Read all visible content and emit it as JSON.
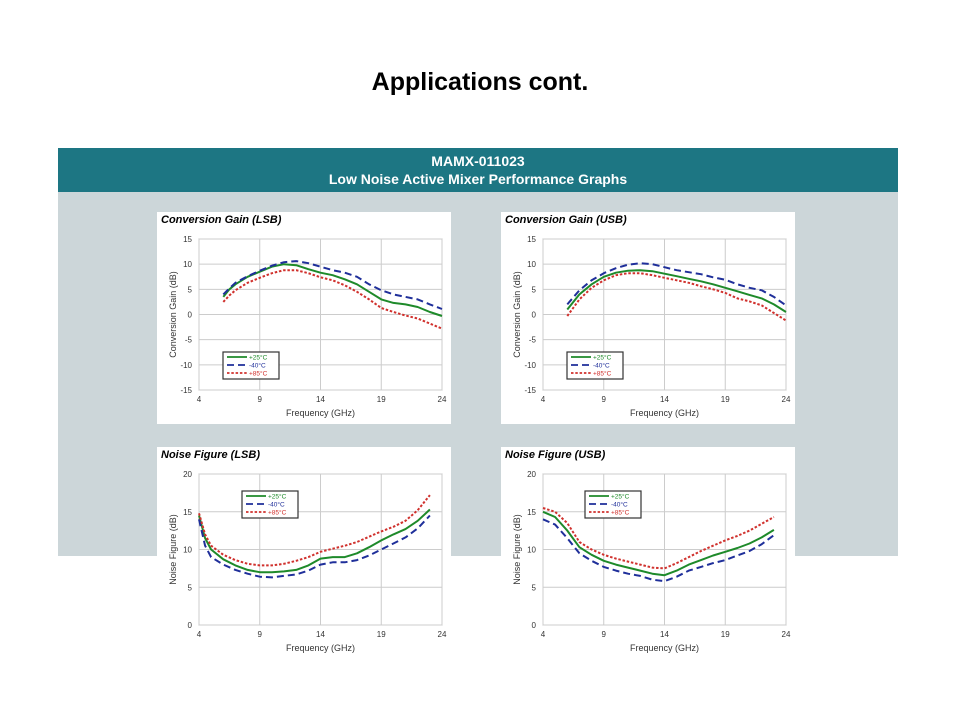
{
  "slide": {
    "title": "Applications cont.",
    "header_line1": "MAMX-011023",
    "header_line2": "Low Noise Active Mixer Performance Graphs"
  },
  "colors": {
    "band": "#1d7683",
    "panel": "#ccd6d9",
    "s25": "#1e8a2a",
    "s40": "#1f2f9a",
    "s85": "#d0312d"
  },
  "chart_data": [
    {
      "type": "line",
      "title": "Conversion Gain (LSB)",
      "xlabel": "Frequency (GHz)",
      "ylabel": "Conversion Gain (dB)",
      "xlim": [
        4,
        24
      ],
      "ylim": [
        -15,
        15
      ],
      "xticks": [
        4,
        9,
        14,
        19,
        24
      ],
      "yticks": [
        15,
        10,
        5,
        0,
        -5,
        -10,
        -15
      ],
      "grid": true,
      "legend": "bottom-left",
      "x": [
        6,
        6.5,
        7,
        8,
        9,
        10,
        11,
        12,
        13,
        14,
        15,
        16,
        17,
        18,
        19,
        20,
        21,
        22,
        23,
        24
      ],
      "series": [
        {
          "name": "+25°C",
          "values": [
            3.5,
            5,
            6,
            7.5,
            8.5,
            9.5,
            10,
            9.8,
            9,
            8.3,
            7.8,
            7,
            6,
            4.5,
            3,
            2.3,
            2,
            1.5,
            0.5,
            -0.3
          ]
        },
        {
          "name": "-40°C",
          "values": [
            4,
            5.2,
            6.3,
            7.6,
            8.7,
            9.7,
            10.4,
            10.6,
            10.2,
            9.5,
            8.8,
            8.3,
            7.5,
            6,
            4.8,
            4,
            3.5,
            3,
            2,
            1.1
          ]
        },
        {
          "name": "+85°C",
          "values": [
            2.5,
            3.8,
            4.8,
            6.3,
            7.3,
            8.2,
            8.8,
            8.8,
            8.2,
            7.4,
            6.8,
            5.8,
            4.5,
            3,
            1.3,
            0.5,
            -0.2,
            -0.8,
            -1.8,
            -2.8
          ]
        }
      ]
    },
    {
      "type": "line",
      "title": "Conversion Gain (USB)",
      "xlabel": "Frequency (GHz)",
      "ylabel": "Conversion Gain (dB)",
      "xlim": [
        4,
        24
      ],
      "ylim": [
        -15,
        15
      ],
      "xticks": [
        4,
        9,
        14,
        19,
        24
      ],
      "yticks": [
        15,
        10,
        5,
        0,
        -5,
        -10,
        -15
      ],
      "grid": true,
      "legend": "bottom-left",
      "x": [
        6,
        7,
        8,
        9,
        10,
        11,
        12,
        13,
        14,
        15,
        16,
        17,
        18,
        19,
        20,
        21,
        22,
        23,
        24
      ],
      "series": [
        {
          "name": "+25°C",
          "values": [
            1,
            4,
            6,
            7.5,
            8.3,
            8.7,
            8.8,
            8.6,
            8.1,
            7.6,
            7.1,
            6.6,
            6,
            5.3,
            4.6,
            3.9,
            3.2,
            2,
            0.5
          ]
        },
        {
          "name": "-40°C",
          "values": [
            2,
            4.8,
            6.8,
            8.2,
            9.2,
            9.9,
            10.2,
            10,
            9.4,
            8.8,
            8.4,
            8,
            7.4,
            6.9,
            6,
            5.3,
            4.8,
            3.5,
            1.8
          ]
        },
        {
          "name": "+85°C",
          "values": [
            -0.3,
            3,
            5.3,
            6.8,
            7.8,
            8.2,
            8.2,
            7.8,
            7.3,
            6.8,
            6.3,
            5.6,
            5,
            4.3,
            3.2,
            2.6,
            1.8,
            0.3,
            -1.2
          ]
        }
      ]
    },
    {
      "type": "line",
      "title": "Noise Figure (LSB)",
      "xlabel": "Frequency (GHz)",
      "ylabel": "Noise Figure (dB)",
      "xlim": [
        4,
        24
      ],
      "ylim": [
        0,
        20
      ],
      "xticks": [
        4,
        9,
        14,
        19,
        24
      ],
      "yticks": [
        20,
        15,
        10,
        5,
        0
      ],
      "grid": true,
      "legend": "top-left",
      "x": [
        4,
        4.5,
        5,
        6,
        7,
        8,
        9,
        10,
        11,
        12,
        13,
        14,
        15,
        16,
        17,
        18,
        19,
        20,
        21,
        22,
        23
      ],
      "series": [
        {
          "name": "+25°C",
          "values": [
            14.5,
            11.5,
            10,
            8.7,
            7.9,
            7.3,
            7,
            7,
            7.1,
            7.3,
            7.9,
            8.8,
            9,
            9,
            9.5,
            10.3,
            11.2,
            12,
            12.7,
            13.8,
            15.3
          ]
        },
        {
          "name": "-40°C",
          "values": [
            14,
            10.5,
            9,
            8,
            7.3,
            6.8,
            6.4,
            6.3,
            6.5,
            6.7,
            7.2,
            8,
            8.3,
            8.3,
            8.6,
            9.2,
            10,
            10.8,
            11.6,
            12.8,
            14.5
          ]
        },
        {
          "name": "+85°C",
          "values": [
            14.8,
            12,
            10.5,
            9.3,
            8.6,
            8.1,
            7.9,
            7.9,
            8.1,
            8.5,
            9,
            9.7,
            10.1,
            10.5,
            11,
            11.7,
            12.4,
            13,
            13.8,
            15.2,
            17.2
          ]
        }
      ]
    },
    {
      "type": "line",
      "title": "Noise Figure (USB)",
      "xlabel": "Frequency (GHz)",
      "ylabel": "Noise Figure (dB)",
      "xlim": [
        4,
        24
      ],
      "ylim": [
        0,
        20
      ],
      "xticks": [
        4,
        9,
        14,
        19,
        24
      ],
      "yticks": [
        20,
        15,
        10,
        5,
        0
      ],
      "grid": true,
      "legend": "top-left",
      "x": [
        4,
        5,
        6,
        7,
        8,
        9,
        10,
        11,
        12,
        13,
        14,
        15,
        16,
        17,
        18,
        19,
        20,
        21,
        22,
        23
      ],
      "series": [
        {
          "name": "+25°C",
          "values": [
            15,
            14.3,
            12.5,
            10.3,
            9.3,
            8.5,
            8,
            7.6,
            7.2,
            6.8,
            6.6,
            7.2,
            8,
            8.6,
            9.2,
            9.7,
            10.2,
            10.8,
            11.6,
            12.6
          ]
        },
        {
          "name": "-40°C",
          "values": [
            14,
            13.3,
            11.5,
            9.5,
            8.5,
            7.7,
            7.2,
            6.8,
            6.5,
            6,
            5.8,
            6.4,
            7.2,
            7.7,
            8.2,
            8.6,
            9.2,
            9.8,
            10.7,
            11.9
          ]
        },
        {
          "name": "+85°C",
          "values": [
            15.5,
            15,
            13.5,
            11,
            10,
            9.3,
            8.8,
            8.4,
            8,
            7.6,
            7.5,
            8.2,
            9,
            9.8,
            10.5,
            11.2,
            11.8,
            12.5,
            13.4,
            14.3
          ]
        }
      ]
    }
  ]
}
